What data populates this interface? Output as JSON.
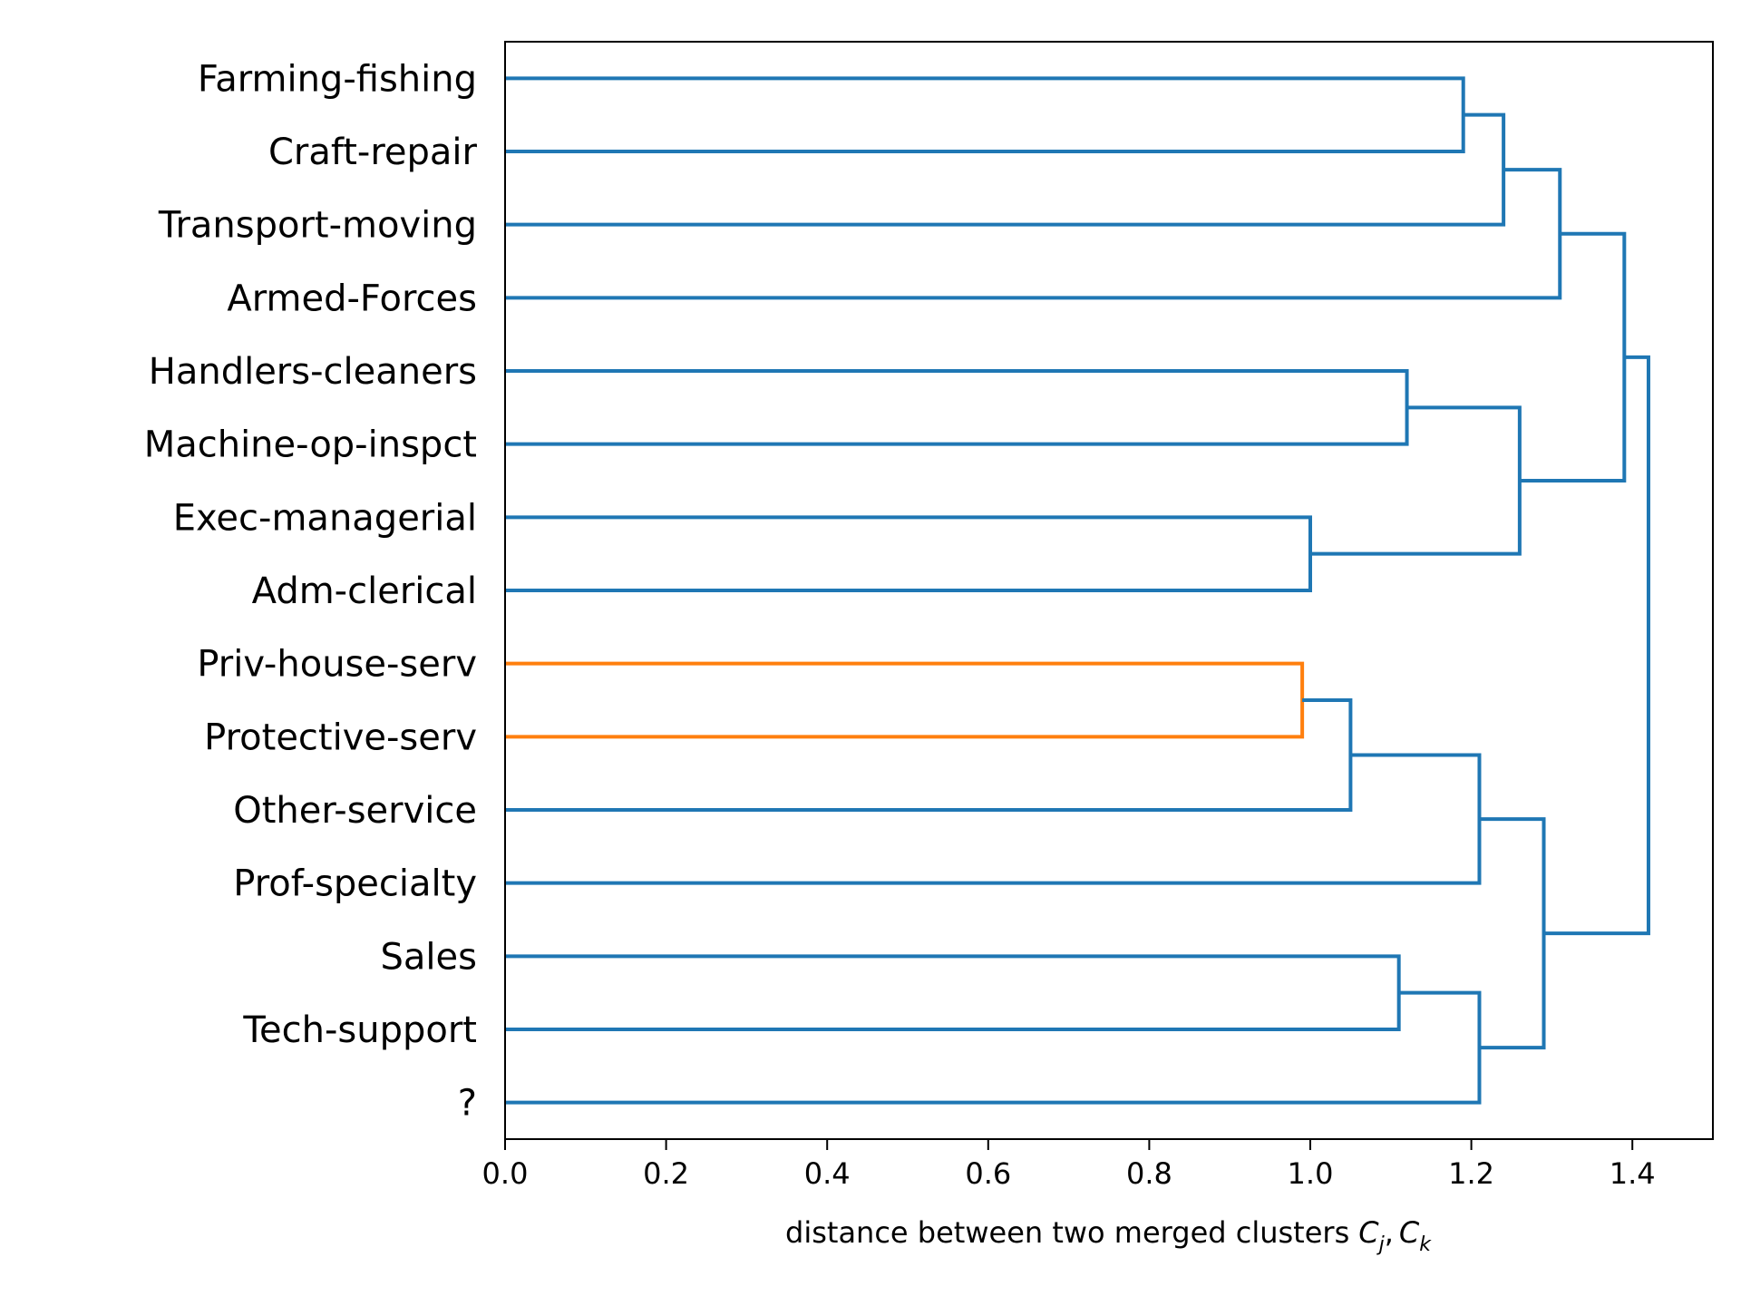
{
  "chart_data": {
    "type": "dendrogram",
    "orientation": "horizontal",
    "leaves": [
      "Farming-fishing",
      "Craft-repair",
      "Transport-moving",
      "Armed-Forces",
      "Handlers-cleaners",
      "Machine-op-inspct",
      "Exec-managerial",
      "Adm-clerical",
      "Priv-house-serv",
      "Protective-serv",
      "Other-service",
      "Prof-specialty",
      "Sales",
      "Tech-support",
      "?"
    ],
    "merges": [
      {
        "left": "Farming-fishing",
        "right": "Craft-repair",
        "height": 1.19,
        "color": "#1f77b4"
      },
      {
        "left": "A1",
        "right": "Transport-moving",
        "height": 1.24,
        "color": "#1f77b4"
      },
      {
        "left": "A2",
        "right": "Armed-Forces",
        "height": 1.31,
        "color": "#1f77b4"
      },
      {
        "left": "Handlers-cleaners",
        "right": "Machine-op-inspct",
        "height": 1.12,
        "color": "#1f77b4"
      },
      {
        "left": "Exec-managerial",
        "right": "Adm-clerical",
        "height": 1.0,
        "color": "#1f77b4"
      },
      {
        "left": "B1",
        "right": "B2",
        "height": 1.26,
        "color": "#1f77b4"
      },
      {
        "left": "A3",
        "right": "B3",
        "height": 1.39,
        "color": "#1f77b4"
      },
      {
        "left": "Priv-house-serv",
        "right": "Protective-serv",
        "height": 0.99,
        "color": "#ff7f0e"
      },
      {
        "left": "C1",
        "right": "Other-service",
        "height": 1.05,
        "color": "#1f77b4"
      },
      {
        "left": "C2",
        "right": "Prof-specialty",
        "height": 1.21,
        "color": "#1f77b4"
      },
      {
        "left": "Sales",
        "right": "Tech-support",
        "height": 1.11,
        "color": "#1f77b4"
      },
      {
        "left": "D1",
        "right": "?",
        "height": 1.21,
        "color": "#1f77b4"
      },
      {
        "left": "C3",
        "right": "D2",
        "height": 1.29,
        "color": "#1f77b4"
      },
      {
        "left": "AB",
        "right": "CD",
        "height": 1.42,
        "color": "#1f77b4"
      }
    ],
    "xlabel": "distance between two merged clusters",
    "xlabel_math": {
      "C": "C",
      "j": "j",
      "k": "k",
      "sep": ","
    },
    "xlim": [
      0.0,
      1.5
    ],
    "xticks": [
      "0.0",
      "0.2",
      "0.4",
      "0.6",
      "0.8",
      "1.0",
      "1.2",
      "1.4"
    ],
    "grid": false,
    "colors": {
      "primary": "#1f77b4",
      "highlight": "#ff7f0e",
      "axis": "#000000"
    }
  }
}
